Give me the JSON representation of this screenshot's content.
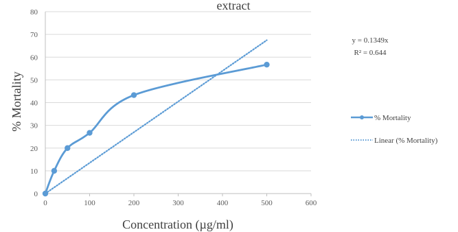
{
  "chart_data": {
    "type": "line",
    "title": "extract",
    "xlabel": "Concentration (µg/ml)",
    "ylabel": "% Mortality",
    "xlim": [
      0,
      600
    ],
    "ylim": [
      0,
      80
    ],
    "xticks": [
      0,
      100,
      200,
      300,
      400,
      500,
      600
    ],
    "yticks": [
      0,
      10,
      20,
      30,
      40,
      50,
      60,
      70,
      80
    ],
    "grid": "horizontal",
    "legend_position": "right",
    "series": [
      {
        "name": "% Mortality",
        "style": "solid-smooth-markers",
        "color": "#5b9bd5",
        "x": [
          0,
          20,
          50,
          100,
          200,
          500
        ],
        "y": [
          0,
          10,
          20,
          26.7,
          43.3,
          56.7
        ]
      },
      {
        "name": "Linear (% Mortality)",
        "style": "dotted",
        "color": "#5b9bd5",
        "x": [
          0,
          500
        ],
        "y": [
          0,
          67.45
        ]
      }
    ],
    "annotations": {
      "equation": "y = 0.1349x",
      "r_squared": "R² = 0.644"
    }
  }
}
